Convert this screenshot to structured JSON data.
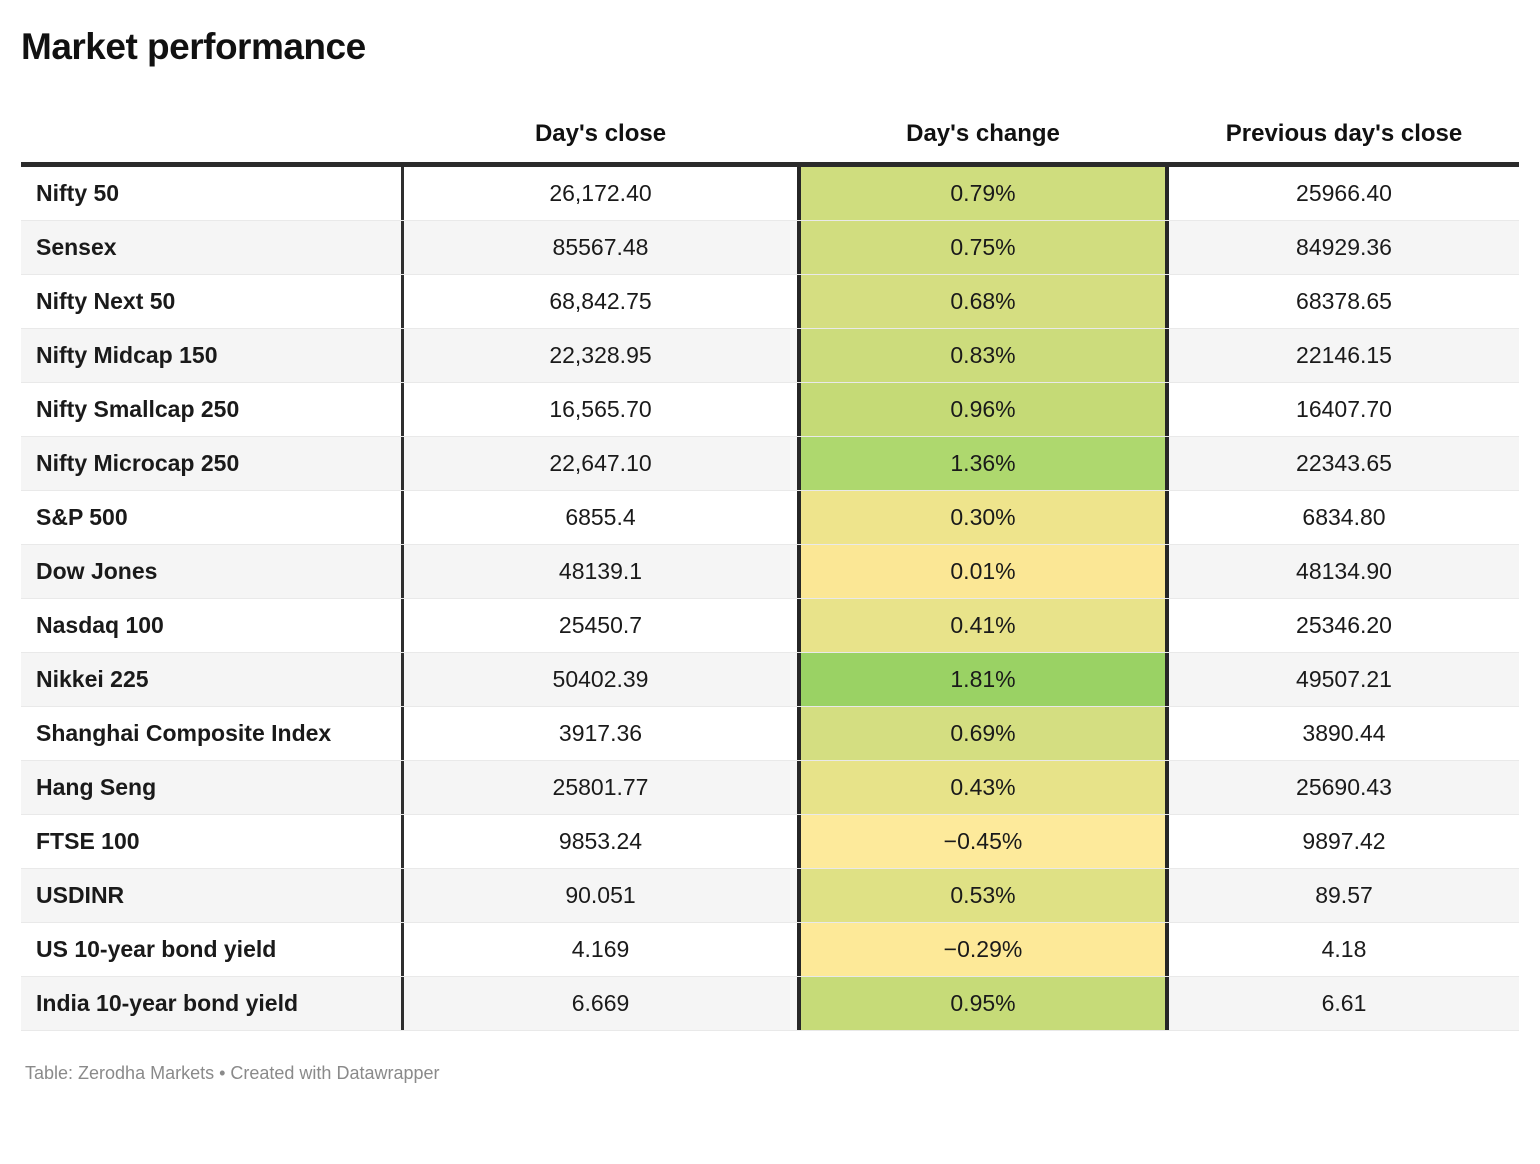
{
  "title": "Market performance",
  "footer": "Table: Zerodha Markets • Created with Datawrapper",
  "colors": {
    "header_rule": "#2b2b2b",
    "column_border": "#262626",
    "zebra_row": "#f5f5f5",
    "row_divider": "#e9e9e9",
    "footer_text": "#8a8a8a"
  },
  "chart_data": {
    "type": "table",
    "title": "Market performance",
    "columns": [
      "",
      "Day's close",
      "Day's change",
      "Previous day's close"
    ],
    "heatmap_column": "Day's change",
    "rows": [
      {
        "label": "Nifty 50",
        "close": "26,172.40",
        "change": "0.79%",
        "change_value": 0.79,
        "change_color": "#cfdd7e",
        "prev": "25966.40"
      },
      {
        "label": "Sensex",
        "close": "85567.48",
        "change": "0.75%",
        "change_value": 0.75,
        "change_color": "#d1dd7f",
        "prev": "84929.36"
      },
      {
        "label": "Nifty Next 50",
        "close": "68,842.75",
        "change": "0.68%",
        "change_value": 0.68,
        "change_color": "#d5de81",
        "prev": "68378.65"
      },
      {
        "label": "Nifty Midcap 150",
        "close": "22,328.95",
        "change": "0.83%",
        "change_value": 0.83,
        "change_color": "#ccdc7c",
        "prev": "22146.15"
      },
      {
        "label": "Nifty Smallcap 250",
        "close": "16,565.70",
        "change": "0.96%",
        "change_value": 0.96,
        "change_color": "#c5da76",
        "prev": "16407.70"
      },
      {
        "label": "Nifty Microcap 250",
        "close": "22,647.10",
        "change": "1.36%",
        "change_value": 1.36,
        "change_color": "#aed86e",
        "prev": "22343.65"
      },
      {
        "label": "S&P 500",
        "close": "6855.4",
        "change": "0.30%",
        "change_value": 0.3,
        "change_color": "#eee48c",
        "prev": "6834.80"
      },
      {
        "label": "Dow Jones",
        "close": "48139.1",
        "change": "0.01%",
        "change_value": 0.01,
        "change_color": "#fbe795",
        "prev": "48134.90"
      },
      {
        "label": "Nasdaq 100",
        "close": "25450.7",
        "change": "0.41%",
        "change_value": 0.41,
        "change_color": "#e8e38a",
        "prev": "25346.20"
      },
      {
        "label": "Nikkei 225",
        "close": "50402.39",
        "change": "1.81%",
        "change_value": 1.81,
        "change_color": "#9ad264",
        "prev": "49507.21"
      },
      {
        "label": "Shanghai Composite Index",
        "close": "3917.36",
        "change": "0.69%",
        "change_value": 0.69,
        "change_color": "#d4de81",
        "prev": "3890.44"
      },
      {
        "label": "Hang Seng",
        "close": "25801.77",
        "change": "0.43%",
        "change_value": 0.43,
        "change_color": "#e7e389",
        "prev": "25690.43"
      },
      {
        "label": "FTSE 100",
        "close": "9853.24",
        "change": "−0.45%",
        "change_value": -0.45,
        "change_color": "#fdea9b",
        "prev": "9897.42"
      },
      {
        "label": "USDINR",
        "close": "90.051",
        "change": "0.53%",
        "change_value": 0.53,
        "change_color": "#dfe185",
        "prev": "89.57"
      },
      {
        "label": "US 10-year bond yield",
        "close": "4.169",
        "change": "−0.29%",
        "change_value": -0.29,
        "change_color": "#fde998",
        "prev": "4.18"
      },
      {
        "label": "India 10-year bond yield",
        "close": "6.669",
        "change": "0.95%",
        "change_value": 0.95,
        "change_color": "#c6db78",
        "prev": "6.61"
      }
    ]
  }
}
